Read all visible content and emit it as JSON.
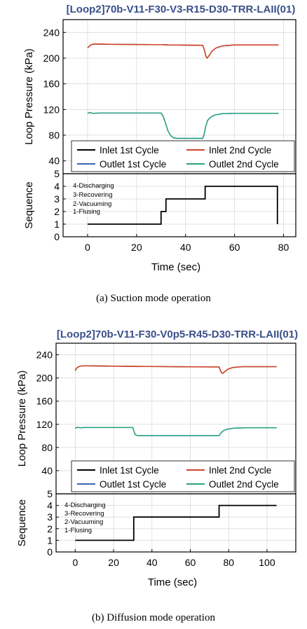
{
  "chart_data": [
    {
      "type": "line",
      "title": "[Loop2]70b-V11-F30-V3-R15-D30-TRR-LAII(01)",
      "caption": "(a) Suction mode operation",
      "xlabel": "Time (sec)",
      "xlim": [
        -10,
        85
      ],
      "xticks": [
        0,
        20,
        40,
        60,
        80
      ],
      "grid": true,
      "pressure_panel": {
        "ylabel": "Loop Pressure (kPa)",
        "ylim": [
          20,
          260
        ],
        "yticks": [
          40,
          80,
          120,
          160,
          200,
          240
        ],
        "legend_position": "bottom-right",
        "series": [
          {
            "name": "Inlet 1st Cycle",
            "color": "#000000",
            "points": [
              [
                0,
                216
              ],
              [
                0.8,
                219
              ],
              [
                1.5,
                221
              ],
              [
                3,
                222
              ],
              [
                10,
                221.5
              ],
              [
                30,
                221
              ],
              [
                33,
                220.5
              ],
              [
                47,
                220
              ],
              [
                47.6,
                214
              ],
              [
                48.3,
                203
              ],
              [
                48.8,
                200
              ],
              [
                49.6,
                204
              ],
              [
                50.8,
                211
              ],
              [
                52.5,
                216
              ],
              [
                55,
                219
              ],
              [
                60,
                220.5
              ],
              [
                78,
                220.5
              ]
            ]
          },
          {
            "name": "Inlet 2nd Cycle",
            "color": "#d0442c",
            "points": [
              [
                0,
                216
              ],
              [
                0.8,
                219
              ],
              [
                1.5,
                221
              ],
              [
                3,
                222
              ],
              [
                10,
                221.5
              ],
              [
                30,
                221
              ],
              [
                33,
                220.5
              ],
              [
                47,
                220
              ],
              [
                47.6,
                214
              ],
              [
                48.3,
                203
              ],
              [
                48.8,
                200
              ],
              [
                49.6,
                204
              ],
              [
                50.8,
                211
              ],
              [
                52.5,
                216
              ],
              [
                55,
                219
              ],
              [
                60,
                220.5
              ],
              [
                78,
                220.5
              ]
            ]
          },
          {
            "name": "Outlet 1st Cycle",
            "color": "#3a66b4",
            "points": [
              [
                0,
                114
              ],
              [
                1,
                115.5
              ],
              [
                2,
                114
              ],
              [
                5,
                114.5
              ],
              [
                30,
                114.5
              ],
              [
                30.8,
                110
              ],
              [
                31.8,
                99
              ],
              [
                32.8,
                87
              ],
              [
                33.8,
                80
              ],
              [
                35,
                76
              ],
              [
                36.5,
                75
              ],
              [
                47,
                75
              ],
              [
                47.5,
                80
              ],
              [
                48.2,
                93
              ],
              [
                49,
                103
              ],
              [
                50.2,
                108
              ],
              [
                52,
                111.5
              ],
              [
                55,
                113.5
              ],
              [
                60,
                114
              ],
              [
                78,
                114
              ]
            ]
          },
          {
            "name": "Outlet 2nd Cycle",
            "color": "#2ba383",
            "points": [
              [
                0,
                114
              ],
              [
                1,
                115.5
              ],
              [
                2,
                114
              ],
              [
                5,
                114.5
              ],
              [
                30,
                114.5
              ],
              [
                30.8,
                110
              ],
              [
                31.8,
                99
              ],
              [
                32.8,
                87
              ],
              [
                33.8,
                80
              ],
              [
                35,
                76
              ],
              [
                36.5,
                75
              ],
              [
                47,
                75
              ],
              [
                47.5,
                80
              ],
              [
                48.2,
                93
              ],
              [
                49,
                103
              ],
              [
                50.2,
                108
              ],
              [
                52,
                111.5
              ],
              [
                55,
                113.5
              ],
              [
                60,
                114
              ],
              [
                78,
                114
              ]
            ]
          }
        ]
      },
      "sequence_panel": {
        "ylabel": "Sequence",
        "ylim": [
          0,
          5
        ],
        "yticks": [
          0,
          1,
          2,
          3,
          4,
          5
        ],
        "annotations": [
          "4-Discharging",
          "3-Recovering",
          "2-Vacuuming",
          "1-Flusing"
        ],
        "color": "#000000",
        "points": [
          [
            0,
            1
          ],
          [
            30,
            1
          ],
          [
            30,
            2
          ],
          [
            32,
            2
          ],
          [
            32,
            3
          ],
          [
            48,
            3
          ],
          [
            48,
            4
          ],
          [
            77.5,
            4
          ],
          [
            77.5,
            1
          ]
        ]
      }
    },
    {
      "type": "line",
      "title": "[Loop2]70b-V11-F30-V0p5-R45-D30-TRR-LAII(01)",
      "caption": "(b) Diffusion mode operation",
      "xlabel": "Time (sec)",
      "xlim": [
        -10,
        115
      ],
      "xticks": [
        0,
        20,
        40,
        60,
        80,
        100
      ],
      "grid": true,
      "pressure_panel": {
        "ylabel": "Loop Pressure (kPa)",
        "ylim": [
          0,
          260
        ],
        "yticks": [
          40,
          80,
          120,
          160,
          200,
          240
        ],
        "legend_position": "bottom-right",
        "series": [
          {
            "name": "Inlet 1st Cycle",
            "color": "#000000",
            "points": [
              [
                0,
                213
              ],
              [
                1,
                218
              ],
              [
                2.5,
                220.5
              ],
              [
                5,
                221
              ],
              [
                30,
                220
              ],
              [
                50,
                219.5
              ],
              [
                75,
                219
              ],
              [
                75.6,
                214
              ],
              [
                76.3,
                209
              ],
              [
                77,
                208
              ],
              [
                78,
                211
              ],
              [
                79.5,
                215
              ],
              [
                82,
                218
              ],
              [
                87,
                219.5
              ],
              [
                105,
                219.5
              ]
            ]
          },
          {
            "name": "Inlet 2nd Cycle",
            "color": "#d0442c",
            "points": [
              [
                0,
                213
              ],
              [
                1,
                218
              ],
              [
                2.5,
                220.5
              ],
              [
                5,
                221
              ],
              [
                30,
                220
              ],
              [
                50,
                219.5
              ],
              [
                75,
                219
              ],
              [
                75.6,
                214
              ],
              [
                76.3,
                209
              ],
              [
                77,
                208
              ],
              [
                78,
                211
              ],
              [
                79.5,
                215
              ],
              [
                82,
                218
              ],
              [
                87,
                219.5
              ],
              [
                105,
                219.5
              ]
            ]
          },
          {
            "name": "Outlet 1st Cycle",
            "color": "#3a66b4",
            "points": [
              [
                0,
                113
              ],
              [
                1,
                115
              ],
              [
                2.5,
                114
              ],
              [
                5,
                114.5
              ],
              [
                30,
                114.5
              ],
              [
                30.6,
                108
              ],
              [
                31.3,
                102
              ],
              [
                32.5,
                100.5
              ],
              [
                40,
                100.5
              ],
              [
                75,
                100.5
              ],
              [
                75.8,
                104
              ],
              [
                77,
                108.5
              ],
              [
                79,
                111.5
              ],
              [
                83,
                113.5
              ],
              [
                90,
                114
              ],
              [
                105,
                114
              ]
            ]
          },
          {
            "name": "Outlet 2nd Cycle",
            "color": "#2ba383",
            "points": [
              [
                0,
                113
              ],
              [
                1,
                115
              ],
              [
                2.5,
                114
              ],
              [
                5,
                114.5
              ],
              [
                30,
                114.5
              ],
              [
                30.6,
                108
              ],
              [
                31.3,
                102
              ],
              [
                32.5,
                100.5
              ],
              [
                40,
                100.5
              ],
              [
                75,
                100.5
              ],
              [
                75.8,
                104
              ],
              [
                77,
                108.5
              ],
              [
                79,
                111.5
              ],
              [
                83,
                113.5
              ],
              [
                90,
                114
              ],
              [
                105,
                114
              ]
            ]
          }
        ]
      },
      "sequence_panel": {
        "ylabel": "Sequence",
        "ylim": [
          0,
          5
        ],
        "yticks": [
          0,
          1,
          2,
          3,
          4,
          5
        ],
        "annotations": [
          "4-Discharging",
          "3-Recovering",
          "2-Vacuuming",
          "1-Flusing"
        ],
        "color": "#000000",
        "points": [
          [
            0,
            1
          ],
          [
            30.5,
            1
          ],
          [
            30.5,
            3
          ],
          [
            75,
            3
          ],
          [
            75,
            4
          ],
          [
            105,
            4
          ]
        ]
      }
    }
  ]
}
